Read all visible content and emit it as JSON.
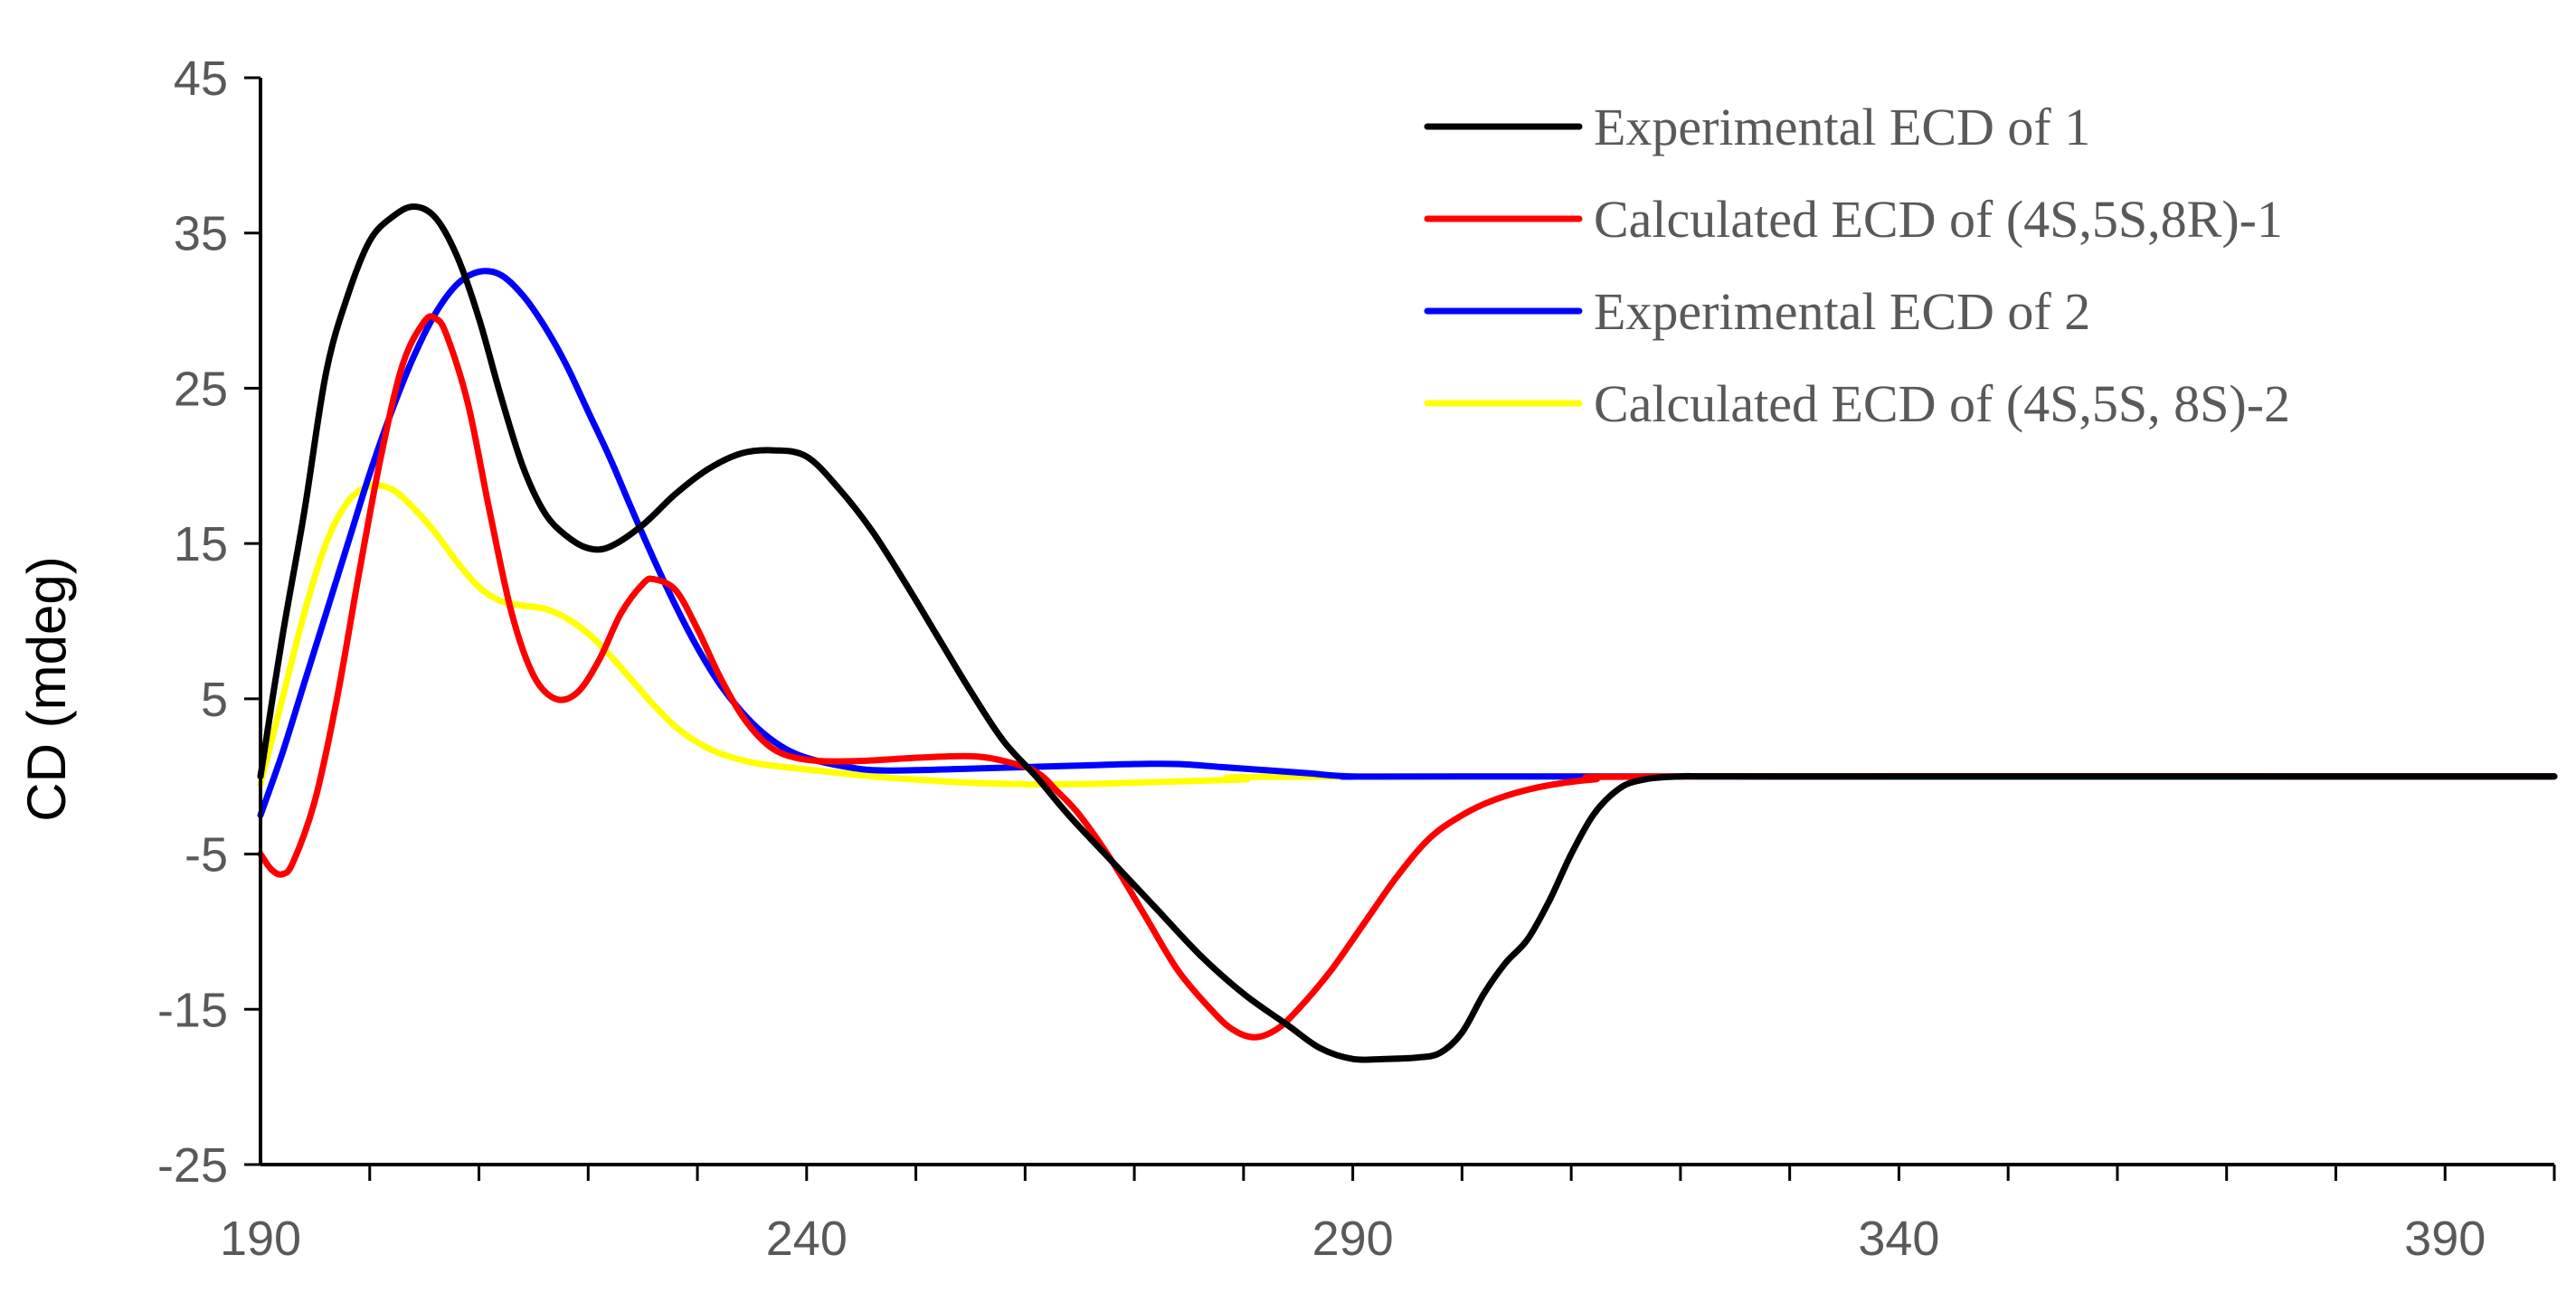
{
  "chart_data": {
    "type": "line",
    "title": "",
    "xlabel": "",
    "ylabel": "CD (mdeg)",
    "xlim": [
      190,
      400
    ],
    "ylim": [
      -25,
      45
    ],
    "x_ticks": [
      190,
      240,
      290,
      340,
      390
    ],
    "x_minor_step": 10,
    "y_ticks": [
      45,
      35,
      25,
      15,
      5,
      -5,
      -15,
      -25
    ],
    "grid": false,
    "legend_position": "top-right",
    "series": [
      {
        "name": "Experimental ECD of 1",
        "color": "#000000",
        "points": [
          [
            190,
            0
          ],
          [
            192,
            9
          ],
          [
            194,
            17
          ],
          [
            196,
            26
          ],
          [
            198,
            31
          ],
          [
            200,
            34.5
          ],
          [
            202,
            36
          ],
          [
            204,
            36.7
          ],
          [
            206,
            36
          ],
          [
            208,
            33.5
          ],
          [
            210,
            29.5
          ],
          [
            212,
            24.5
          ],
          [
            214,
            20
          ],
          [
            216,
            17
          ],
          [
            218,
            15.5
          ],
          [
            220,
            14.7
          ],
          [
            222,
            14.8
          ],
          [
            225,
            16.2
          ],
          [
            228,
            18.2
          ],
          [
            231,
            19.8
          ],
          [
            234,
            20.8
          ],
          [
            237,
            21
          ],
          [
            240,
            20.6
          ],
          [
            243,
            18.5
          ],
          [
            246,
            15.8
          ],
          [
            249,
            12.5
          ],
          [
            252,
            9
          ],
          [
            255,
            5.5
          ],
          [
            258,
            2.3
          ],
          [
            261,
            0
          ],
          [
            264,
            -2.5
          ],
          [
            268,
            -5.5
          ],
          [
            272,
            -8.5
          ],
          [
            276,
            -11.5
          ],
          [
            280,
            -14
          ],
          [
            284,
            -16
          ],
          [
            287,
            -17.5
          ],
          [
            290,
            -18.2
          ],
          [
            293,
            -18.2
          ],
          [
            296,
            -18.1
          ],
          [
            298,
            -17.8
          ],
          [
            300,
            -16.5
          ],
          [
            302,
            -14
          ],
          [
            304,
            -12
          ],
          [
            306,
            -10.5
          ],
          [
            308,
            -8
          ],
          [
            310,
            -5
          ],
          [
            312,
            -2.5
          ],
          [
            314,
            -1
          ],
          [
            316,
            -0.3
          ],
          [
            320,
            0
          ],
          [
            330,
            0
          ],
          [
            400,
            0
          ]
        ]
      },
      {
        "name": "Calculated ECD of (4S,5S,8R)-1",
        "color": "#ff0000",
        "points": [
          [
            190,
            -5
          ],
          [
            191,
            -6
          ],
          [
            192,
            -6.3
          ],
          [
            193,
            -5.5
          ],
          [
            195,
            -1.5
          ],
          [
            197,
            5
          ],
          [
            199,
            13
          ],
          [
            201,
            20.5
          ],
          [
            203,
            26.5
          ],
          [
            205,
            29.3
          ],
          [
            206,
            29.5
          ],
          [
            207,
            28.5
          ],
          [
            209,
            24
          ],
          [
            211,
            17
          ],
          [
            213,
            10.5
          ],
          [
            215,
            6.5
          ],
          [
            217,
            5
          ],
          [
            219,
            5.4
          ],
          [
            221,
            7.5
          ],
          [
            223,
            10.5
          ],
          [
            225,
            12.4
          ],
          [
            226,
            12.7
          ],
          [
            228,
            12
          ],
          [
            230,
            9.5
          ],
          [
            232,
            6.5
          ],
          [
            234,
            4
          ],
          [
            236,
            2.3
          ],
          [
            238,
            1.4
          ],
          [
            241,
            1
          ],
          [
            245,
            1
          ],
          [
            250,
            1.2
          ],
          [
            255,
            1.3
          ],
          [
            258,
            1
          ],
          [
            261,
            0.3
          ],
          [
            263,
            -1
          ],
          [
            265,
            -2.5
          ],
          [
            268,
            -5.5
          ],
          [
            271,
            -9
          ],
          [
            274,
            -12.5
          ],
          [
            277,
            -15
          ],
          [
            279,
            -16.3
          ],
          [
            281,
            -16.8
          ],
          [
            283,
            -16.3
          ],
          [
            285,
            -15
          ],
          [
            288,
            -12.5
          ],
          [
            291,
            -9.5
          ],
          [
            294,
            -6.5
          ],
          [
            297,
            -4
          ],
          [
            300,
            -2.5
          ],
          [
            303,
            -1.5
          ],
          [
            307,
            -0.7
          ],
          [
            312,
            -0.2
          ],
          [
            320,
            0
          ],
          [
            400,
            0
          ]
        ]
      },
      {
        "name": "Experimental ECD of 2",
        "color": "#0000ff",
        "points": [
          [
            190,
            -2.5
          ],
          [
            192,
            1.5
          ],
          [
            194,
            6
          ],
          [
            196,
            10.5
          ],
          [
            198,
            15
          ],
          [
            200,
            19.5
          ],
          [
            202,
            23.5
          ],
          [
            204,
            27
          ],
          [
            206,
            29.8
          ],
          [
            208,
            31.7
          ],
          [
            210,
            32.5
          ],
          [
            212,
            32.3
          ],
          [
            214,
            31
          ],
          [
            216,
            29
          ],
          [
            218,
            26.5
          ],
          [
            220,
            23.5
          ],
          [
            222,
            20.5
          ],
          [
            224,
            17.2
          ],
          [
            226,
            14
          ],
          [
            228,
            11
          ],
          [
            230,
            8.3
          ],
          [
            232,
            6
          ],
          [
            234,
            4.2
          ],
          [
            236,
            2.8
          ],
          [
            238,
            1.8
          ],
          [
            240,
            1.2
          ],
          [
            243,
            0.7
          ],
          [
            246,
            0.4
          ],
          [
            250,
            0.4
          ],
          [
            255,
            0.5
          ],
          [
            260,
            0.6
          ],
          [
            265,
            0.7
          ],
          [
            270,
            0.8
          ],
          [
            274,
            0.8
          ],
          [
            278,
            0.6
          ],
          [
            282,
            0.4
          ],
          [
            286,
            0.2
          ],
          [
            290,
            0
          ],
          [
            300,
            0
          ],
          [
            400,
            0
          ]
        ]
      },
      {
        "name": "Calculated ECD of (4S,5S, 8S)-2",
        "color": "#ffff00",
        "points": [
          [
            190,
            -0.5
          ],
          [
            192,
            5
          ],
          [
            194,
            10.5
          ],
          [
            196,
            15
          ],
          [
            198,
            17.7
          ],
          [
            200,
            18.7
          ],
          [
            202,
            18.5
          ],
          [
            204,
            17.3
          ],
          [
            206,
            15.7
          ],
          [
            208,
            13.8
          ],
          [
            210,
            12.2
          ],
          [
            212,
            11.3
          ],
          [
            214,
            11
          ],
          [
            216,
            10.8
          ],
          [
            218,
            10.2
          ],
          [
            220,
            9.2
          ],
          [
            222,
            7.8
          ],
          [
            224,
            6.2
          ],
          [
            226,
            4.6
          ],
          [
            228,
            3.2
          ],
          [
            230,
            2.2
          ],
          [
            232,
            1.5
          ],
          [
            235,
            0.9
          ],
          [
            238,
            0.6
          ],
          [
            242,
            0.3
          ],
          [
            246,
            0
          ],
          [
            250,
            -0.2
          ],
          [
            255,
            -0.4
          ],
          [
            260,
            -0.5
          ],
          [
            265,
            -0.5
          ],
          [
            270,
            -0.4
          ],
          [
            275,
            -0.3
          ],
          [
            280,
            -0.2
          ],
          [
            290,
            0
          ],
          [
            400,
            0
          ]
        ]
      }
    ]
  }
}
